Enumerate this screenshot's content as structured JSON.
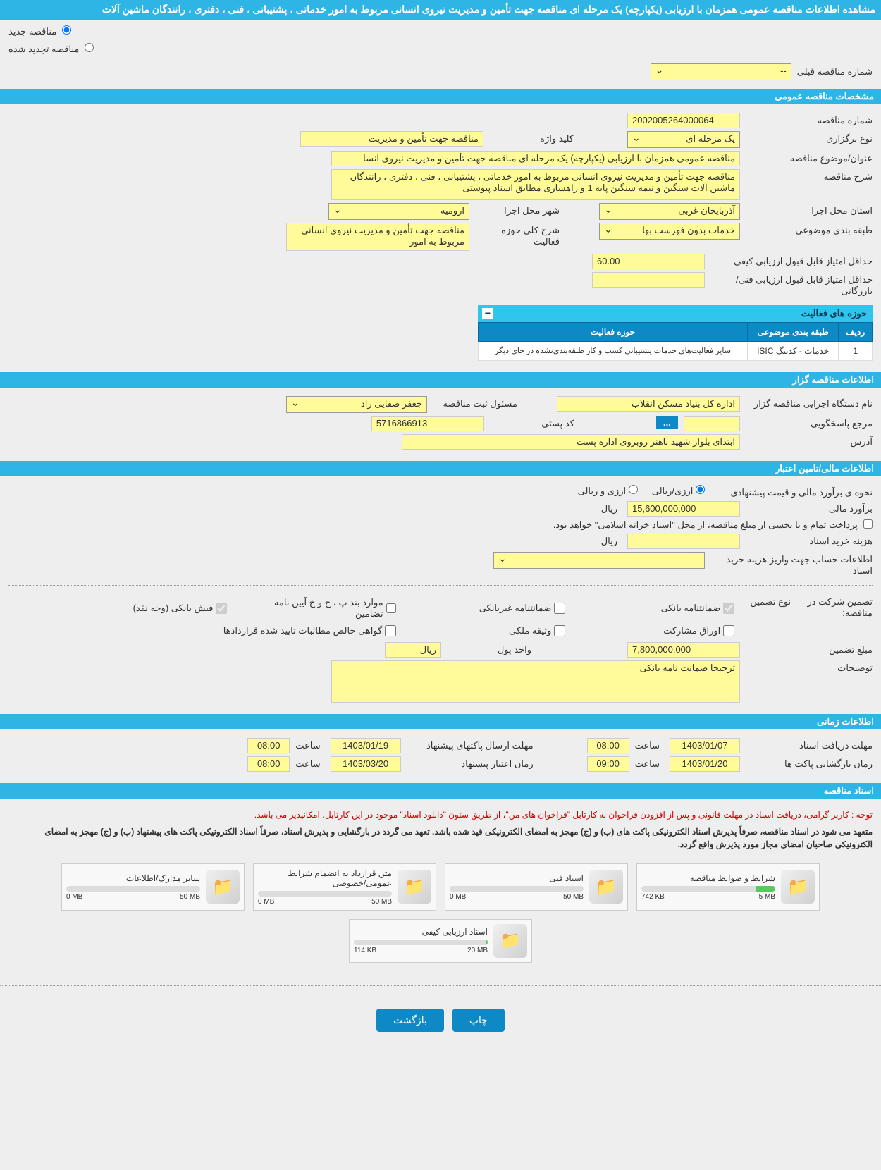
{
  "page_title": "مشاهده اطلاعات مناقصه عمومی همزمان با ارزیابی (یکپارچه) یک مرحله ای مناقصه جهت تأمین و مدیریت نیروی انسانی مربوط به امور خدماتی ، پشتیبانی ، فنی ، دفتری ، رانندگان ماشین آلات",
  "radios": {
    "new_tender": "مناقصه جدید",
    "renewed_tender": "مناقصه تجدید شده"
  },
  "prev_number": {
    "label": "شماره مناقصه قبلی",
    "value": "--"
  },
  "sections": {
    "general": "مشخصات مناقصه عمومی",
    "orgInfo": "اطلاعات مناقصه گزار",
    "financial": "اطلاعات مالی/تامین اعتبار",
    "timing": "اطلاعات زمانی",
    "documents": "اسناد مناقصه"
  },
  "general": {
    "tender_number_label": "شماره مناقصه",
    "tender_number": "2002005264000064",
    "type_label": "نوع برگزاری",
    "type": "یک مرحله ای",
    "keyword_label": "کلید واژه",
    "keyword": "مناقصه جهت تأمین و مدیریت",
    "subject_label": "عنوان/موضوع مناقصه",
    "subject": "مناقصه عمومی همزمان با ارزیابی (یکپارچه) یک مرحله ای مناقصه جهت تأمین و مدیریت نیروی انسا",
    "desc_label": "شرح مناقصه",
    "desc": "مناقصه جهت تأمین و مدیریت نیروی انسانی مربوط به امور خدماتی ، پشتیبانی ، فنی ، دفتری ، رانندگان ماشین آلات سنگین و نیمه سنگین پایه 1 و راهسازی مطابق اسناد پیوستی",
    "province_label": "استان محل اجرا",
    "province": "آذربایجان غربی",
    "city_label": "شهر محل اجرا",
    "city": "ارومیه",
    "category_label": "طبقه بندی موضوعی",
    "category": "خدمات بدون فهرست بها",
    "activity_desc_label": "شرح کلی حوزه فعالیت",
    "activity_desc": "مناقصه جهت تأمین و مدیریت نیروی انسانی مربوط به امور",
    "min_quality_label": "حداقل امتیاز قابل قبول ارزیابی کیفی",
    "min_quality": "60.00",
    "min_tech_label": "حداقل امتیاز قابل قبول ارزیابی فنی/بازرگانی",
    "min_tech": ""
  },
  "activity_areas": {
    "title": "حوزه های فعالیت",
    "cols": {
      "row": "ردیف",
      "category": "طبقه بندی موضوعی",
      "area": "حوزه فعالیت"
    },
    "rows": [
      {
        "n": "1",
        "cat": "خدمات - کدینگ ISIC",
        "area": "سایر فعالیت‌های خدمات پشتیبانی کسب و کار طبقه‌بندی‌نشده در جای دیگر"
      }
    ]
  },
  "org": {
    "agency_label": "نام دستگاه اجرایی مناقصه گزار",
    "agency": "اداره کل بنیاد مسکن انقلاب",
    "responsible_label": "مسئول ثبت مناقصه",
    "responsible": "جعفر صفایی راد",
    "contact_label": "مرجع پاسخگویی",
    "contact": "",
    "postal_label": "کد پستی",
    "postal": "5716866913",
    "address_label": "آدرس",
    "address": "ابتدای بلوار شهید باهنر روبروی اداره پست"
  },
  "fin": {
    "method_label": "نحوه ی برآورد مالی و قیمت پیشنهادی",
    "opt_rial": "ارزی/ریالی",
    "opt_arzi": "ارزی و ریالی",
    "estimate_label": "برآورد مالی",
    "estimate": "15,600,000,000",
    "unit_rial": "ریال",
    "treasury_note": "پرداخت تمام و یا بخشی از مبلغ مناقصه، از محل \"اسناد خزانه اسلامی\" خواهد بود.",
    "doc_fee_label": "هزینه خرید اسناد",
    "doc_fee": "",
    "account_label": "اطلاعات حساب جهت واریز هزینه خرید اسناد",
    "account": "--",
    "guarantee_label": "تضمین شرکت در مناقصه:",
    "guarantee_type_label": "نوع تضمین",
    "checks": {
      "bank_guarantee": "ضمانتنامه بانکی",
      "nonbank_guarantee": "ضمانتنامه غیربانکی",
      "special_cases": "موارد بند پ ، ج و خ آیین نامه تضامین",
      "bank_receipt": "فیش بانکی (وجه نقد)",
      "bonds": "اوراق مشارکت",
      "deed": "وثیقه ملکی",
      "certificate": "گواهی خالص مطالبات تایید شده قراردادها"
    },
    "guarantee_amount_label": "مبلغ تضمین",
    "guarantee_amount": "7,800,000,000",
    "currency_label": "واحد پول",
    "currency": "ریال",
    "notes_label": "توضیحات",
    "notes": "ترجیحا ضمانت نامه بانکی"
  },
  "timing": {
    "doc_deadline_label": "مهلت دریافت اسناد",
    "doc_deadline_date": "1403/01/07",
    "doc_deadline_time": "08:00",
    "send_deadline_label": "مهلت ارسال پاکتهای پیشنهاد",
    "send_deadline_date": "1403/01/19",
    "send_deadline_time": "08:00",
    "open_label": "زمان بازگشایی پاکت ها",
    "open_date": "1403/01/20",
    "open_time": "09:00",
    "validity_label": "زمان اعتبار پیشنهاد",
    "validity_date": "1403/03/20",
    "validity_time": "08:00",
    "time_label": "ساعت"
  },
  "docs": {
    "notice1": "توجه : کاربر گرامی، دریافت اسناد در مهلت قانونی و پس از افزودن فراخوان به کارتابل \"فراخوان های من\"، از طریق ستون \"دانلود اسناد\" موجود در این کارتابل، امکانپذیر می باشد.",
    "notice2": "متعهد می شود در اسناد مناقصه، صرفاً پذیرش اسناد الکترونیکی پاکت های (ب) و (ج) مهجز به امضای الکترونیکی قید شده باشد. تعهد می گردد در بارگشایی و پذیرش اسناد، صرفاً اسناد الکترونیکی پاکت های پیشنهاد (ب) و (ج) مهجز به امضای الکترونیکی صاحبان امضای مجاز مورد پذیرش واقع گردد.",
    "items": [
      {
        "title": "شرایط و ضوابط مناقصه",
        "max": "5 MB",
        "used": "742 KB",
        "pct": 15
      },
      {
        "title": "اسناد فنی",
        "max": "50 MB",
        "used": "0 MB",
        "pct": 0
      },
      {
        "title": "متن قرارداد به انضمام شرایط عمومی/خصوصی",
        "max": "50 MB",
        "used": "0 MB",
        "pct": 0
      },
      {
        "title": "سایر مدارک/اطلاعات",
        "max": "50 MB",
        "used": "0 MB",
        "pct": 0
      },
      {
        "title": "اسناد ارزیابی کیفی",
        "max": "20 MB",
        "used": "114 KB",
        "pct": 1
      }
    ]
  },
  "buttons": {
    "print": "چاپ",
    "back": "بازگشت"
  }
}
